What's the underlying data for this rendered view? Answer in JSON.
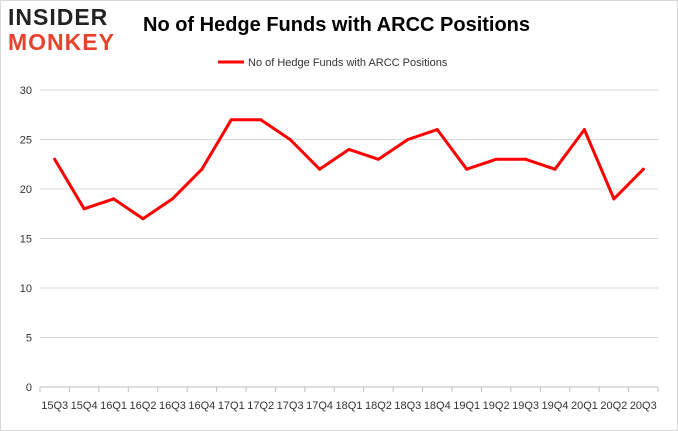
{
  "logo": {
    "line1": "INSIDER",
    "line2": "MONKEY"
  },
  "colors": {
    "series": "#ff0000",
    "grid": "#d9d9d9",
    "axis": "#bfbfbf",
    "text": "#333333"
  },
  "chart_data": {
    "type": "line",
    "title": "No of Hedge Funds with ARCC Positions",
    "xlabel": "",
    "ylabel": "",
    "ylim": [
      0,
      30
    ],
    "yticks": [
      0,
      5,
      10,
      15,
      20,
      25,
      30
    ],
    "grid": true,
    "legend_position": "top",
    "categories": [
      "15Q3",
      "15Q4",
      "16Q1",
      "16Q2",
      "16Q3",
      "16Q4",
      "17Q1",
      "17Q2",
      "17Q3",
      "17Q4",
      "18Q1",
      "18Q2",
      "18Q3",
      "18Q4",
      "19Q1",
      "19Q2",
      "19Q3",
      "19Q4",
      "20Q1",
      "20Q2",
      "20Q3"
    ],
    "series": [
      {
        "name": "No of Hedge Funds with ARCC Positions",
        "values": [
          23,
          18,
          19,
          17,
          19,
          22,
          27,
          27,
          25,
          22,
          24,
          23,
          25,
          26,
          22,
          23,
          23,
          22,
          26,
          19,
          22
        ]
      }
    ]
  }
}
